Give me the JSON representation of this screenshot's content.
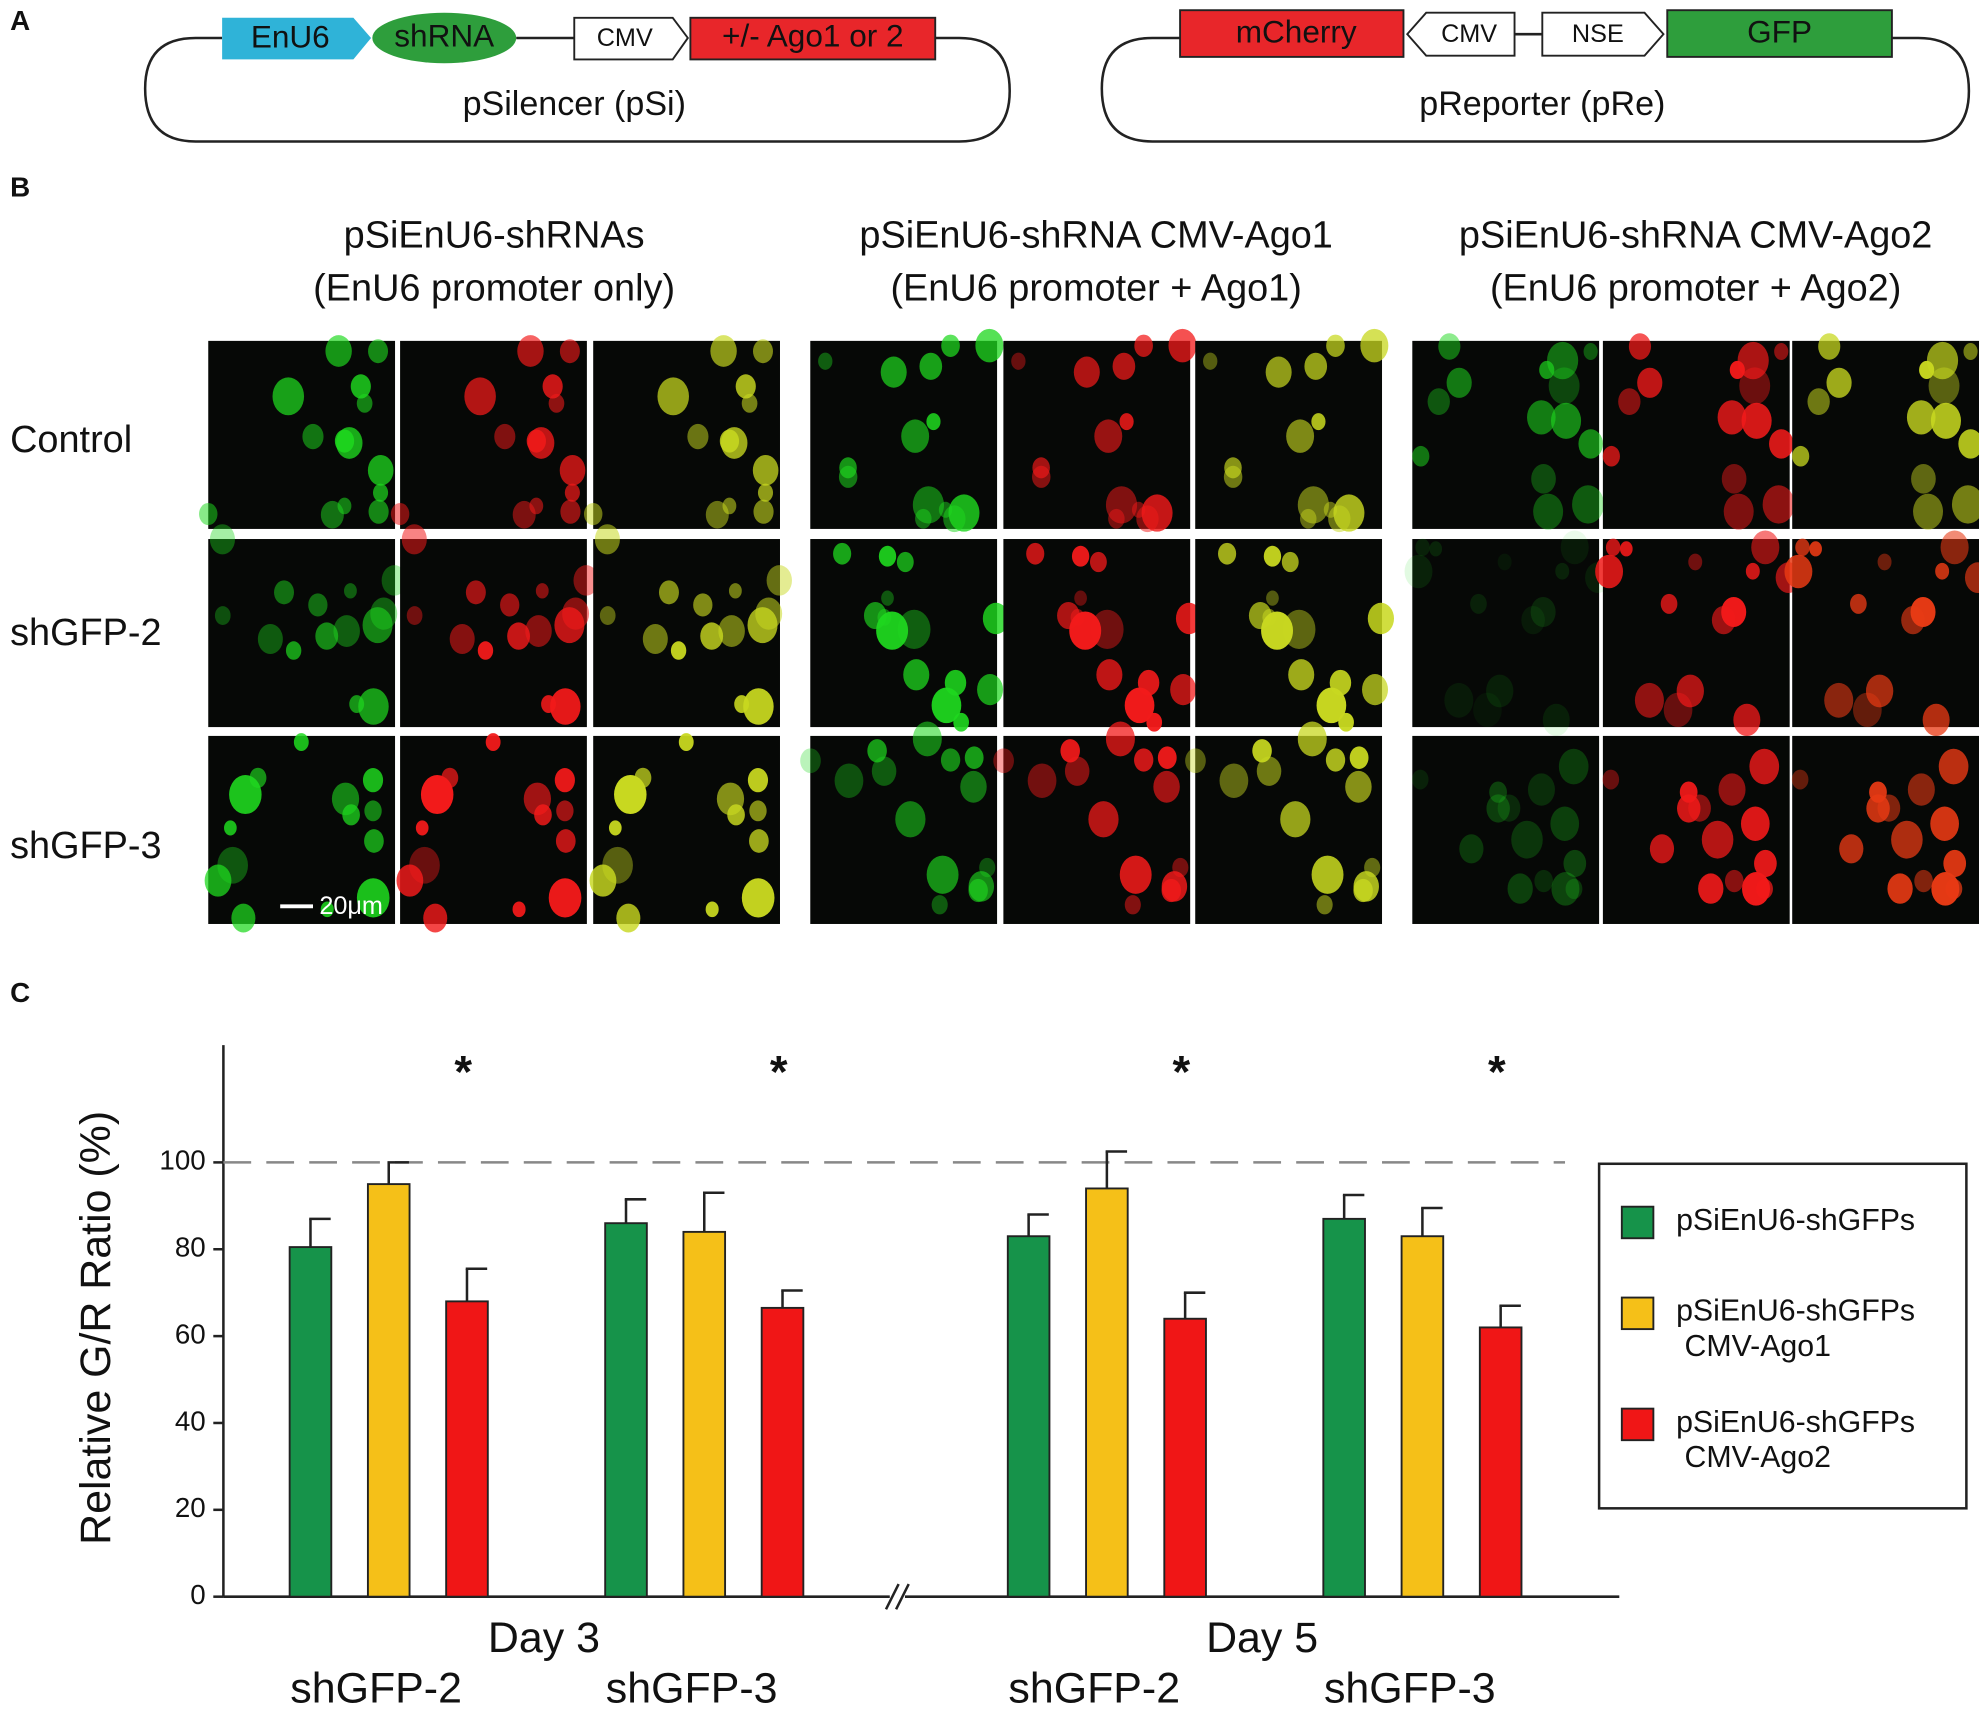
{
  "panel_labels": [
    "A",
    "B",
    "C"
  ],
  "diagram": {
    "psilencer": {
      "elements": [
        "EnU6",
        "shRNA",
        "CMV",
        "+/- Ago1 or 2"
      ],
      "label": "pSilencer (pSi)"
    },
    "preporter": {
      "elements": [
        "mCherry",
        "CMV",
        "NSE",
        "GFP"
      ],
      "label": "pReporter (pRe)"
    }
  },
  "micrographs": {
    "columns": [
      {
        "title": "pSiEnU6-shRNAs",
        "subtitle": "(EnU6 promoter only)"
      },
      {
        "title": "pSiEnU6-shRNA CMV-Ago1",
        "subtitle": "(EnU6 promoter + Ago1)"
      },
      {
        "title": "pSiEnU6-shRNA CMV-Ago2",
        "subtitle": "(EnU6 promoter + Ago2)"
      }
    ],
    "rows": [
      "Control",
      "shGFP-2",
      "shGFP-3"
    ],
    "scale_bar": "20μm"
  },
  "chart_data": {
    "type": "bar",
    "y_label": "Relative G/R Ratio (%)",
    "categories": [
      "shGFP-2",
      "shGFP-3",
      "shGFP-2",
      "shGFP-3"
    ],
    "day_labels": [
      "Day 3",
      "Day 5"
    ],
    "significance": [
      "*",
      "*",
      "*",
      "*"
    ],
    "series": [
      {
        "name": "pSiEnU6-shGFPs",
        "color": "#16934a",
        "values": [
          80.5,
          86,
          83,
          87
        ],
        "errors": [
          6.5,
          5.5,
          5,
          5.5
        ]
      },
      {
        "name": "pSiEnU6-shGFPs CMV-Ago1",
        "color": "#f5c018",
        "values": [
          95,
          84,
          94,
          83
        ],
        "errors": [
          5,
          9,
          8.5,
          6.5
        ]
      },
      {
        "name": "pSiEnU6-shGFPs CMV-Ago2",
        "color": "#f01616",
        "values": [
          68,
          66.5,
          64,
          62
        ],
        "errors": [
          7.5,
          4,
          6,
          5
        ]
      }
    ],
    "ylim": [
      0,
      127
    ],
    "yticks": [
      0,
      20,
      40,
      60,
      80,
      100
    ],
    "reference_line": 100,
    "legend": "right"
  }
}
